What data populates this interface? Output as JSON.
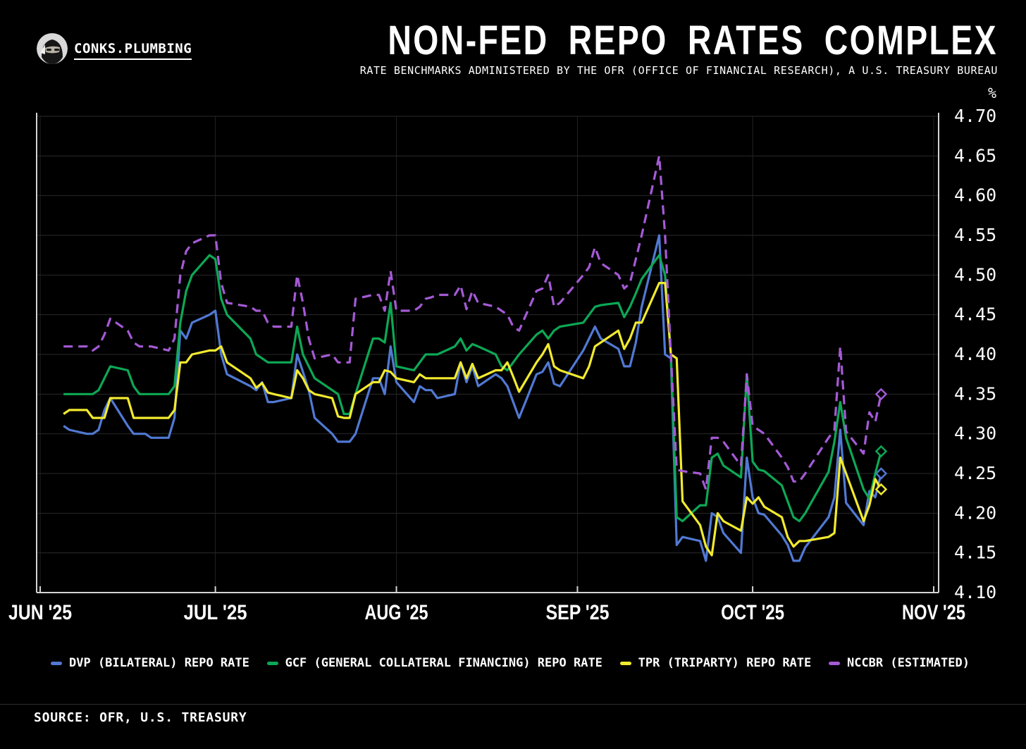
{
  "header": {
    "brand": "CONKS.PLUMBING",
    "title": "NON-FED REPO RATES COMPLEX",
    "subtitle": "RATE BENCHMARKS ADMINISTERED BY THE OFR (OFFICE OF FINANCIAL RESEARCH), A U.S. TREASURY BUREAU"
  },
  "chart_data": {
    "type": "line",
    "unit_label": "%",
    "ylim": [
      4.1,
      4.7
    ],
    "ytick_step": 0.05,
    "grid": true,
    "legend_position": "bottom",
    "grid_color": "#2a2a2a",
    "month_grid_color": "#222222",
    "axis_color": "#d4d4d4",
    "background_color": "#000000",
    "x_range": [
      "2025-06-01",
      "2025-11-01"
    ],
    "xticks": [
      {
        "label": "JUN '25",
        "date": "2025-06-01"
      },
      {
        "label": "JUL '25",
        "date": "2025-07-01"
      },
      {
        "label": "AUG '25",
        "date": "2025-08-01"
      },
      {
        "label": "SEP '25",
        "date": "2025-09-01"
      },
      {
        "label": "OCT '25",
        "date": "2025-10-01"
      },
      {
        "label": "NOV '25",
        "date": "2025-11-01"
      }
    ],
    "dates": [
      "2025-06-05",
      "2025-06-06",
      "2025-06-09",
      "2025-06-10",
      "2025-06-11",
      "2025-06-12",
      "2025-06-13",
      "2025-06-16",
      "2025-06-17",
      "2025-06-18",
      "2025-06-19",
      "2025-06-20",
      "2025-06-23",
      "2025-06-24",
      "2025-06-25",
      "2025-06-26",
      "2025-06-27",
      "2025-06-30",
      "2025-07-01",
      "2025-07-02",
      "2025-07-03",
      "2025-07-07",
      "2025-07-08",
      "2025-07-09",
      "2025-07-10",
      "2025-07-11",
      "2025-07-14",
      "2025-07-15",
      "2025-07-16",
      "2025-07-17",
      "2025-07-18",
      "2025-07-21",
      "2025-07-22",
      "2025-07-23",
      "2025-07-24",
      "2025-07-25",
      "2025-07-28",
      "2025-07-29",
      "2025-07-30",
      "2025-07-31",
      "2025-08-01",
      "2025-08-04",
      "2025-08-05",
      "2025-08-06",
      "2025-08-07",
      "2025-08-08",
      "2025-08-11",
      "2025-08-12",
      "2025-08-13",
      "2025-08-14",
      "2025-08-15",
      "2025-08-18",
      "2025-08-19",
      "2025-08-20",
      "2025-08-21",
      "2025-08-22",
      "2025-08-25",
      "2025-08-26",
      "2025-08-27",
      "2025-08-28",
      "2025-08-29",
      "2025-09-02",
      "2025-09-03",
      "2025-09-04",
      "2025-09-05",
      "2025-09-08",
      "2025-09-09",
      "2025-09-10",
      "2025-09-11",
      "2025-09-12",
      "2025-09-15",
      "2025-09-16",
      "2025-09-17",
      "2025-09-18",
      "2025-09-19",
      "2025-09-22",
      "2025-09-23",
      "2025-09-24",
      "2025-09-25",
      "2025-09-26",
      "2025-09-29",
      "2025-09-30",
      "2025-10-01",
      "2025-10-02",
      "2025-10-03",
      "2025-10-06",
      "2025-10-07",
      "2025-10-08",
      "2025-10-09",
      "2025-10-10",
      "2025-10-14",
      "2025-10-15",
      "2025-10-16",
      "2025-10-17",
      "2025-10-20",
      "2025-10-21",
      "2025-10-22",
      "2025-10-23"
    ],
    "series": [
      {
        "name": "DVP (BILATERAL) REPO RATE",
        "color": "#5179d3",
        "dashed": false,
        "values": [
          4.31,
          4.305,
          4.3,
          4.3,
          4.305,
          4.33,
          4.345,
          4.31,
          4.3,
          4.3,
          4.3,
          4.295,
          4.295,
          4.32,
          4.43,
          4.42,
          4.44,
          4.45,
          4.455,
          4.4,
          4.375,
          4.36,
          4.355,
          4.365,
          4.34,
          4.34,
          4.345,
          4.4,
          4.378,
          4.355,
          4.32,
          4.3,
          4.29,
          4.29,
          4.29,
          4.3,
          4.37,
          4.37,
          4.35,
          4.41,
          4.365,
          4.34,
          4.36,
          4.355,
          4.355,
          4.345,
          4.35,
          4.39,
          4.365,
          4.385,
          4.36,
          4.375,
          4.37,
          4.36,
          4.34,
          4.32,
          4.375,
          4.378,
          4.39,
          4.363,
          4.36,
          4.405,
          4.42,
          4.435,
          4.42,
          4.407,
          4.385,
          4.385,
          4.415,
          4.46,
          4.55,
          4.4,
          4.395,
          4.16,
          4.17,
          4.165,
          4.14,
          4.2,
          4.195,
          4.175,
          4.15,
          4.27,
          4.22,
          4.2,
          4.198,
          4.172,
          4.16,
          4.14,
          4.14,
          4.157,
          4.195,
          4.22,
          4.305,
          4.213,
          4.185,
          4.228,
          4.22,
          4.25
        ]
      },
      {
        "name": "GCF (GENERAL COLLATERAL FINANCING) REPO RATE",
        "color": "#0ca855",
        "dashed": false,
        "values": [
          4.35,
          4.35,
          4.35,
          4.35,
          4.355,
          4.37,
          4.385,
          4.38,
          4.36,
          4.35,
          4.35,
          4.35,
          4.35,
          4.36,
          4.44,
          4.48,
          4.5,
          4.525,
          4.52,
          4.47,
          4.45,
          4.42,
          4.4,
          4.395,
          4.39,
          4.39,
          4.39,
          4.435,
          4.4,
          4.385,
          4.37,
          4.355,
          4.35,
          4.325,
          4.325,
          4.35,
          4.42,
          4.42,
          4.415,
          4.465,
          4.385,
          4.38,
          4.39,
          4.4,
          4.4,
          4.4,
          4.41,
          4.42,
          4.405,
          4.413,
          4.41,
          4.4,
          4.385,
          4.38,
          4.39,
          4.4,
          4.425,
          4.43,
          4.42,
          4.43,
          4.435,
          4.44,
          4.45,
          4.46,
          4.462,
          4.465,
          4.447,
          4.46,
          4.477,
          4.495,
          4.525,
          4.5,
          4.4,
          4.195,
          4.19,
          4.21,
          4.21,
          4.27,
          4.275,
          4.26,
          4.245,
          4.375,
          4.265,
          4.255,
          4.253,
          4.235,
          4.215,
          4.195,
          4.19,
          4.2,
          4.252,
          4.29,
          4.34,
          4.295,
          4.23,
          4.218,
          4.25,
          4.278
        ]
      },
      {
        "name": "TPR (TRIPARTY) REPO RATE",
        "color": "#f2ea2e",
        "dashed": false,
        "values": [
          4.325,
          4.33,
          4.33,
          4.32,
          4.32,
          4.32,
          4.345,
          4.345,
          4.32,
          4.32,
          4.32,
          4.32,
          4.32,
          4.33,
          4.39,
          4.39,
          4.4,
          4.405,
          4.405,
          4.41,
          4.39,
          4.37,
          4.358,
          4.364,
          4.352,
          4.35,
          4.345,
          4.38,
          4.37,
          4.355,
          4.35,
          4.345,
          4.322,
          4.32,
          4.32,
          4.35,
          4.365,
          4.365,
          4.38,
          4.378,
          4.37,
          4.365,
          4.375,
          4.37,
          4.37,
          4.37,
          4.37,
          4.39,
          4.37,
          4.388,
          4.37,
          4.38,
          4.38,
          4.39,
          4.372,
          4.353,
          4.39,
          4.4,
          4.413,
          4.385,
          4.38,
          4.37,
          4.385,
          4.41,
          4.415,
          4.43,
          4.407,
          4.42,
          4.44,
          4.44,
          4.49,
          4.49,
          4.4,
          4.395,
          4.215,
          4.185,
          4.158,
          4.147,
          4.2,
          4.19,
          4.178,
          4.22,
          4.212,
          4.22,
          4.208,
          4.195,
          4.17,
          4.158,
          4.165,
          4.165,
          4.17,
          4.175,
          4.27,
          4.25,
          4.19,
          4.21,
          4.243,
          4.23
        ]
      },
      {
        "name": "NCCBR (ESTIMATED)",
        "color": "#a55ad5",
        "dashed": true,
        "values": [
          4.41,
          4.41,
          4.41,
          4.405,
          4.41,
          4.425,
          4.445,
          4.43,
          4.415,
          4.41,
          4.41,
          4.41,
          4.405,
          4.42,
          4.5,
          4.53,
          4.54,
          4.55,
          4.55,
          4.49,
          4.465,
          4.46,
          4.455,
          4.455,
          4.44,
          4.435,
          4.435,
          4.5,
          4.465,
          4.42,
          4.395,
          4.4,
          4.39,
          4.39,
          4.39,
          4.47,
          4.475,
          4.475,
          4.455,
          4.505,
          4.455,
          4.455,
          4.46,
          4.47,
          4.472,
          4.475,
          4.475,
          4.487,
          4.457,
          4.48,
          4.465,
          4.46,
          4.455,
          4.45,
          4.435,
          4.43,
          4.48,
          4.483,
          4.5,
          4.46,
          4.465,
          4.5,
          4.51,
          4.535,
          4.515,
          4.5,
          4.483,
          4.49,
          4.52,
          4.55,
          4.65,
          4.55,
          4.4,
          4.255,
          4.253,
          4.25,
          4.23,
          4.295,
          4.295,
          4.29,
          4.26,
          4.375,
          4.31,
          4.305,
          4.3,
          4.27,
          4.258,
          4.24,
          4.24,
          4.25,
          4.295,
          4.305,
          4.41,
          4.303,
          4.275,
          4.327,
          4.315,
          4.35
        ]
      }
    ]
  },
  "footer": {
    "source": "SOURCE: OFR, U.S. TREASURY"
  }
}
